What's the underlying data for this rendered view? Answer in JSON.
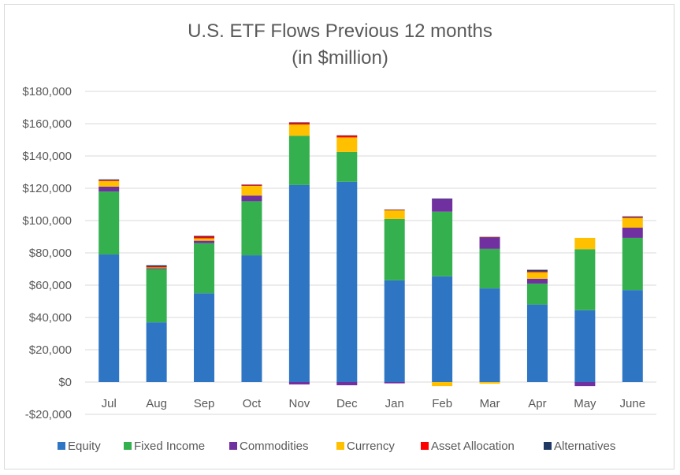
{
  "chart_data": {
    "type": "bar",
    "stacked": true,
    "title": [
      "U.S. ETF Flows Previous 12 months",
      "(in $million)"
    ],
    "categories": [
      "Jul",
      "Aug",
      "Sep",
      "Oct",
      "Nov",
      "Dec",
      "Jan",
      "Feb",
      "Mar",
      "Apr",
      "May",
      "June"
    ],
    "ylim": [
      -20000,
      180000
    ],
    "yticks": [
      -20000,
      0,
      20000,
      40000,
      60000,
      80000,
      100000,
      120000,
      140000,
      160000,
      180000
    ],
    "ytick_labels": [
      "-$20,000",
      "$0",
      "$20,000",
      "$40,000",
      "$60,000",
      "$80,000",
      "$100,000",
      "$120,000",
      "$140,000",
      "$160,000",
      "$180,000"
    ],
    "grid": true,
    "legend_position": "bottom",
    "series": [
      {
        "name": "Equity",
        "color": "#2e75c3",
        "values": [
          79000,
          37000,
          55000,
          78500,
          122000,
          124000,
          63000,
          65500,
          58000,
          48000,
          44500,
          57000
        ]
      },
      {
        "name": "Fixed Income",
        "color": "#34b04f",
        "values": [
          39000,
          33000,
          31000,
          33500,
          30500,
          18500,
          38000,
          40000,
          24500,
          13000,
          37800,
          32300
        ]
      },
      {
        "name": "Commodities",
        "color": "#7030a0",
        "values": [
          3000,
          500,
          1500,
          3500,
          -1500,
          -2000,
          -800,
          8000,
          7000,
          3000,
          -2500,
          6300
        ]
      },
      {
        "name": "Currency",
        "color": "#ffc000",
        "values": [
          3500,
          500,
          1500,
          6000,
          7000,
          9000,
          5500,
          -2500,
          -1000,
          4000,
          7000,
          6000
        ]
      },
      {
        "name": "Asset Allocation",
        "color": "#ff0000",
        "values": [
          500,
          500,
          1000,
          500,
          1000,
          1000,
          100,
          0,
          100,
          500,
          0,
          500
        ]
      },
      {
        "name": "Alternatives",
        "color": "#1f3864",
        "values": [
          500,
          800,
          500,
          300,
          300,
          300,
          200,
          100,
          300,
          1000,
          0,
          500
        ]
      }
    ]
  }
}
